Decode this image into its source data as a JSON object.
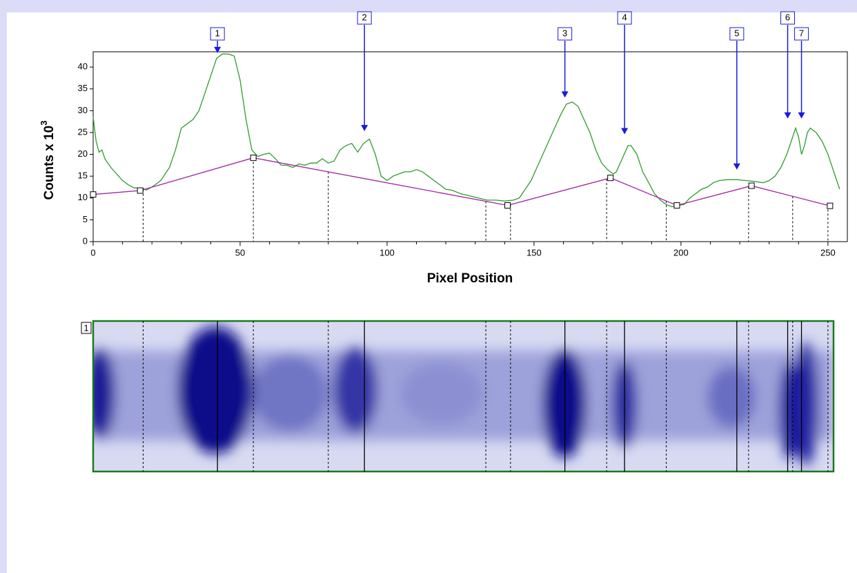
{
  "chart_data": {
    "type": "line",
    "ylabel": "Counts x 10",
    "ylabel_sup": "3",
    "xlabel": "Pixel Position",
    "xlim": [
      0,
      256.6
    ],
    "ylim": [
      0,
      43.5
    ],
    "xticks": [
      0,
      50,
      100,
      150,
      200,
      250
    ],
    "xticks_minor": [
      10,
      20,
      30,
      40,
      60,
      70,
      80,
      90,
      110,
      120,
      130,
      140,
      160,
      170,
      180,
      190,
      210,
      220,
      230,
      240
    ],
    "yticks": [
      0,
      5,
      10,
      15,
      20,
      25,
      30,
      35,
      40
    ],
    "series": [
      {
        "color": "#2e9a2e",
        "x": [
          0,
          1,
          2,
          3,
          4,
          6,
          8,
          10,
          12,
          14,
          17,
          18,
          20,
          23,
          26,
          28,
          30,
          32,
          34,
          36,
          38,
          40,
          42,
          44,
          46,
          48,
          50,
          52,
          54,
          56,
          58,
          60,
          62,
          64,
          66,
          68,
          70,
          72,
          74,
          76,
          78,
          80,
          82,
          84,
          86,
          88,
          90,
          92,
          94,
          96,
          98,
          100,
          102,
          104,
          106,
          108,
          110,
          112,
          114,
          116,
          118,
          120,
          122,
          125,
          128,
          131,
          134,
          137,
          140,
          143,
          145,
          147,
          149,
          151,
          153,
          155,
          157,
          159,
          161,
          163,
          165,
          167,
          169,
          171,
          173,
          175,
          177,
          178,
          180,
          182,
          183,
          185,
          187,
          189,
          191,
          193,
          195,
          197,
          199,
          201,
          203,
          205,
          207,
          209,
          211,
          213,
          216,
          219,
          222,
          225,
          228,
          230,
          232,
          234,
          236,
          238,
          239,
          240,
          241,
          242,
          243,
          244,
          246,
          248,
          250,
          252,
          254
        ],
        "values": [
          28.5,
          23,
          20.5,
          21,
          19,
          17,
          15.5,
          14,
          13,
          12.3,
          12.2,
          11.8,
          12.5,
          14,
          17,
          21,
          26,
          27,
          28,
          30,
          34,
          38,
          42,
          43,
          43,
          42.5,
          37,
          28,
          21,
          19.5,
          20,
          20.3,
          19,
          17.5,
          17.5,
          17,
          17.8,
          17.5,
          18,
          18,
          19,
          18,
          18.5,
          21,
          22,
          22.5,
          20.5,
          22.5,
          23.5,
          20,
          15,
          14,
          15,
          15.5,
          16,
          16,
          16.5,
          16,
          15,
          14,
          13,
          12,
          11.8,
          11,
          10.5,
          10,
          9.5,
          9.5,
          9.3,
          9.5,
          10,
          12,
          14,
          17,
          20,
          23,
          26,
          29,
          31.5,
          32,
          31,
          28,
          25,
          21,
          18,
          16.5,
          15.5,
          16,
          19,
          22,
          22,
          20,
          16,
          13.5,
          11,
          9.5,
          8.5,
          8,
          8.3,
          8.5,
          10,
          11,
          12,
          12.5,
          13.5,
          14,
          14.2,
          14.2,
          14,
          13.8,
          13.5,
          14,
          15,
          17,
          20,
          24,
          26,
          24,
          20,
          22,
          25,
          26,
          25,
          23,
          20,
          16,
          12
        ]
      },
      {
        "color": "#a020a0",
        "markers": true,
        "x": [
          0,
          16,
          54.5,
          141,
          176,
          198.6,
          224,
          250.7
        ],
        "values": [
          10.8,
          11.7,
          19.2,
          8.3,
          14.6,
          8.3,
          12.8,
          8.2
        ]
      }
    ],
    "cut_positions": [
      17,
      54.5,
      80,
      133.6,
      142,
      174.7,
      195,
      223,
      238,
      250
    ],
    "peaks": [
      {
        "label": "1",
        "x": 42.3,
        "value": 43.2
      },
      {
        "label": "2",
        "x": 92.3,
        "value": 25.3
      },
      {
        "label": "3",
        "x": 160.5,
        "value": 33
      },
      {
        "label": "4",
        "x": 180.8,
        "value": 24.6
      },
      {
        "label": "5",
        "x": 219,
        "value": 16.5
      },
      {
        "label": "6",
        "x": 236.3,
        "value": 28.2
      },
      {
        "label": "7",
        "x": 241,
        "value": 28.2
      }
    ],
    "peak_color": "#1a1ae0"
  },
  "gel": {
    "lane_label": "1"
  }
}
